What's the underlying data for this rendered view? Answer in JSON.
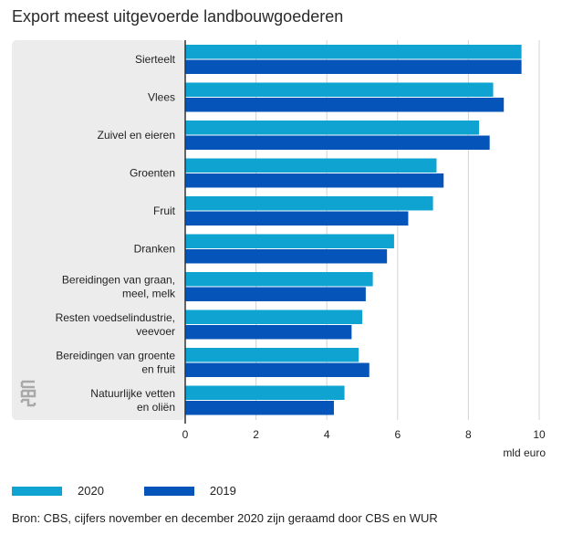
{
  "title": "Export meest uitgevoerde landbouwgoederen",
  "source": "Bron: CBS, cijfers november en december 2020 zijn geraamd door CBS en WUR",
  "logo_text": "cbs",
  "colors": {
    "series_2020": "#0fa3d2",
    "series_2019": "#0554b9",
    "panel": "#ececec",
    "grid": "#d3d3d3",
    "axis": "#333333"
  },
  "chart_data": {
    "type": "bar",
    "orientation": "horizontal",
    "title": "Export meest uitgevoerde landbouwgoederen",
    "xlabel": "mld euro",
    "ylabel": "",
    "xlim": [
      0,
      10
    ],
    "xticks": [
      "0",
      "2",
      "4",
      "6",
      "8",
      "10"
    ],
    "grid": true,
    "legend_position": "bottom-left",
    "categories": [
      [
        "Sierteelt"
      ],
      [
        "Vlees"
      ],
      [
        "Zuivel en eieren"
      ],
      [
        "Groenten"
      ],
      [
        "Fruit"
      ],
      [
        "Dranken"
      ],
      [
        "Bereidingen van graan,",
        "meel, melk"
      ],
      [
        "Resten voedselindustrie,",
        "veevoer"
      ],
      [
        "Bereidingen van groente",
        "en fruit"
      ],
      [
        "Natuurlijke vetten",
        "en oliën"
      ]
    ],
    "series": [
      {
        "name": "2020",
        "color": "#0fa3d2",
        "values": [
          9.5,
          8.7,
          8.3,
          7.1,
          7.0,
          5.9,
          5.3,
          5.0,
          4.9,
          4.5
        ]
      },
      {
        "name": "2019",
        "color": "#0554b9",
        "values": [
          9.5,
          9.0,
          8.6,
          7.3,
          6.3,
          5.7,
          5.1,
          4.7,
          5.2,
          4.2
        ]
      }
    ]
  }
}
